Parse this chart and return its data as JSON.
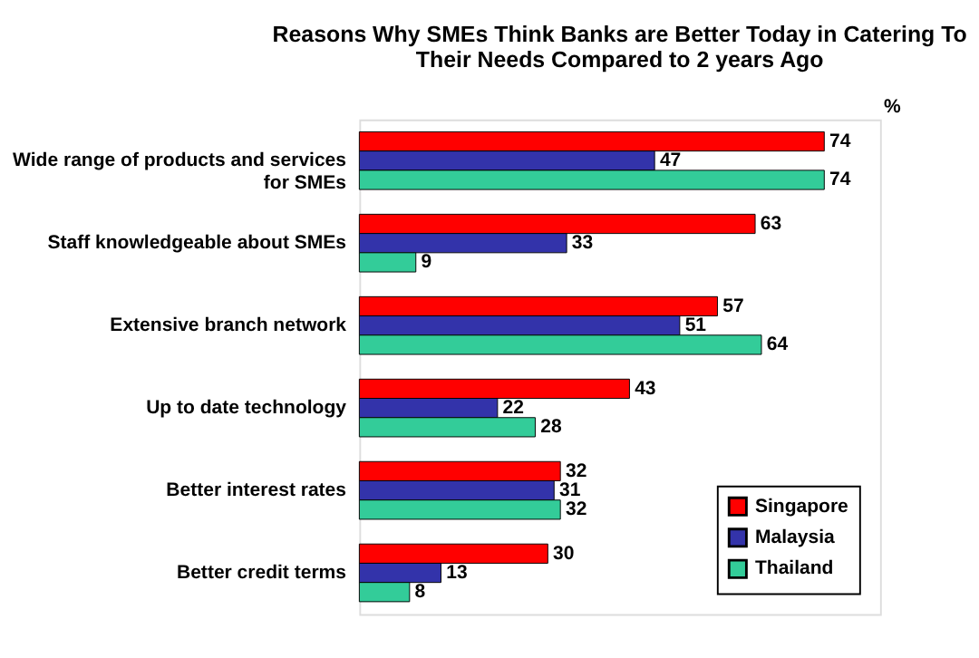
{
  "chart_data": {
    "type": "bar",
    "orientation": "horizontal",
    "title": "Reasons Why SMEs Think Banks are Better Today in Catering To Their Needs Compared to 2 years Ago",
    "categories": [
      "Wide range of products and services for SMEs",
      "Staff knowledgeable about SMEs",
      "Extensive branch network",
      "Up to date technology",
      "Better interest rates",
      "Better credit terms"
    ],
    "series": [
      {
        "name": "Singapore",
        "color": "#ff0000",
        "values": [
          74,
          63,
          57,
          43,
          32,
          30
        ]
      },
      {
        "name": "Malaysia",
        "color": "#3333aa",
        "values": [
          47,
          33,
          51,
          22,
          31,
          13
        ]
      },
      {
        "name": "Thailand",
        "color": "#33cc99",
        "values": [
          74,
          9,
          64,
          28,
          32,
          8
        ]
      }
    ],
    "data_labels": true,
    "legend": "bottom right",
    "annotations": [
      "%"
    ]
  }
}
